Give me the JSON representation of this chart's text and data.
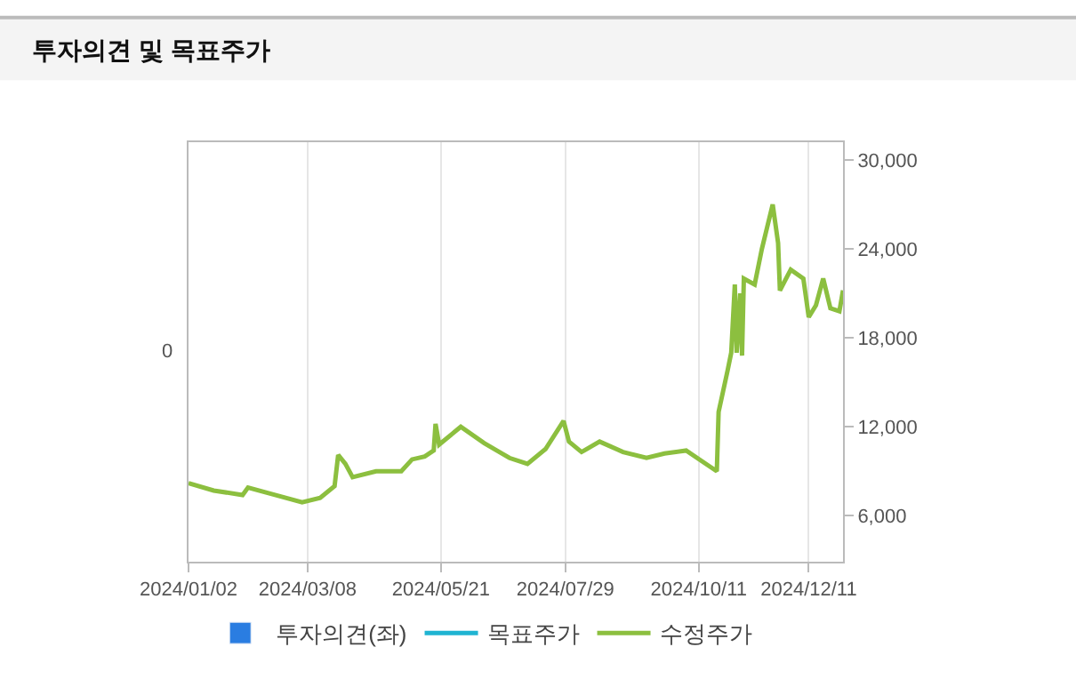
{
  "chart_data": {
    "type": "line",
    "title": "투자의견 및 목표주가",
    "annotations": [
      "0"
    ],
    "xlim": [
      "2024-01-02",
      "2024-12-30"
    ],
    "xticks": [
      {
        "value": "2024-01-02",
        "label": "2024/01/02"
      },
      {
        "value": "2024-03-08",
        "label": "2024/03/08"
      },
      {
        "value": "2024-05-21",
        "label": "2024/05/21"
      },
      {
        "value": "2024-07-29",
        "label": "2024/07/29"
      },
      {
        "value": "2024-10-11",
        "label": "2024/10/11"
      },
      {
        "value": "2024-12-11",
        "label": "2024/12/11"
      }
    ],
    "y2lim": [
      2900,
      31200
    ],
    "y2ticks": [
      {
        "value": 6000,
        "label": "6,000"
      },
      {
        "value": 12000,
        "label": "12,000"
      },
      {
        "value": 18000,
        "label": "18,000"
      },
      {
        "value": 24000,
        "label": "24,000"
      },
      {
        "value": 30000,
        "label": "30,000"
      }
    ],
    "grid": "x",
    "legend": "bottom",
    "marker": "none",
    "line_style": "solid",
    "series": [
      {
        "name": "투자의견(좌)",
        "type": "bar",
        "color": "#2a7de1"
      },
      {
        "name": "목표주가",
        "axis": "y2",
        "color": "#1fb4d2"
      },
      {
        "name": "수정주가",
        "axis": "y2",
        "color": "#8cbf3f",
        "x": [
          "2024-01-02",
          "2024-01-16",
          "2024-02-01",
          "2024-02-04",
          "2024-02-19",
          "2024-03-05",
          "2024-03-15",
          "2024-03-23",
          "2024-03-25",
          "2024-03-29",
          "2024-04-02",
          "2024-04-15",
          "2024-04-29",
          "2024-05-05",
          "2024-05-12",
          "2024-05-17",
          "2024-05-18",
          "2024-05-20",
          "2024-06-01",
          "2024-06-14",
          "2024-06-28",
          "2024-07-08",
          "2024-07-18",
          "2024-07-28",
          "2024-07-31",
          "2024-08-07",
          "2024-08-17",
          "2024-08-30",
          "2024-09-12",
          "2024-09-22",
          "2024-10-04",
          "2024-10-21",
          "2024-10-22",
          "2024-10-27",
          "2024-10-29",
          "2024-10-31",
          "2024-11-01",
          "2024-11-03",
          "2024-11-04",
          "2024-11-05",
          "2024-11-11",
          "2024-11-15",
          "2024-11-21",
          "2024-11-24",
          "2024-11-25",
          "2024-12-01",
          "2024-12-08",
          "2024-12-11",
          "2024-12-15",
          "2024-12-19",
          "2024-12-23",
          "2024-12-28",
          "2024-12-30"
        ],
        "values": [
          8200,
          7700,
          7400,
          7900,
          7400,
          6900,
          7200,
          8000,
          10100,
          9500,
          8600,
          9000,
          9000,
          9800,
          10000,
          10400,
          12200,
          10800,
          12000,
          10900,
          9900,
          9500,
          10500,
          12400,
          11000,
          10300,
          11000,
          10300,
          9900,
          10200,
          10400,
          9000,
          13000,
          15800,
          17000,
          21600,
          17000,
          21000,
          16800,
          22000,
          21600,
          24000,
          27000,
          24400,
          21200,
          22600,
          22000,
          19400,
          20200,
          22000,
          20000,
          19800,
          21200
        ]
      }
    ]
  }
}
